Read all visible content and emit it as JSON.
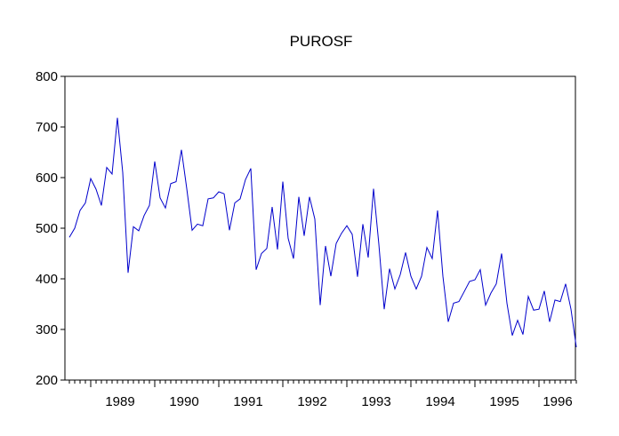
{
  "chart_data": {
    "type": "line",
    "title": "PUROSF",
    "xlabel": "",
    "ylabel": "",
    "ylim": [
      200,
      800
    ],
    "yticks": [
      200,
      300,
      400,
      500,
      600,
      700,
      800
    ],
    "year_labels": [
      "1989",
      "1990",
      "1991",
      "1992",
      "1993",
      "1994",
      "1995",
      "1996"
    ],
    "start": "1988-09",
    "frequency": "monthly",
    "grid": false,
    "legend": "none",
    "series": [
      {
        "color": "#0000cc",
        "values": [
          482,
          500,
          535,
          550,
          598,
          577,
          545,
          620,
          607,
          718,
          610,
          412,
          503,
          495,
          525,
          545,
          632,
          560,
          540,
          588,
          592,
          655,
          578,
          496,
          508,
          505,
          558,
          560,
          572,
          568,
          496,
          550,
          558,
          596,
          618,
          418,
          450,
          460,
          542,
          458,
          592,
          480,
          440,
          562,
          485,
          562,
          518,
          348,
          465,
          405,
          470,
          490,
          505,
          488,
          404,
          508,
          442,
          578,
          468,
          340,
          420,
          380,
          408,
          452,
          405,
          380,
          405,
          462,
          440,
          535,
          405,
          315,
          352,
          355,
          375,
          395,
          398,
          418,
          348,
          372,
          390,
          450,
          352,
          288,
          318,
          290,
          365,
          338,
          340,
          376,
          315,
          358,
          355,
          390,
          340,
          265
        ]
      }
    ]
  }
}
